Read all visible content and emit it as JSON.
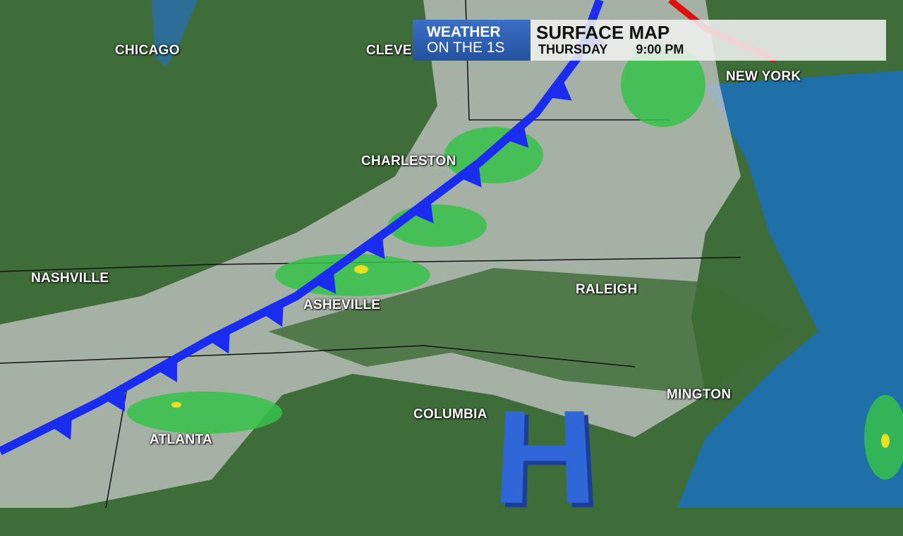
{
  "banner": {
    "brand_line1": "WEATHER",
    "brand_line2": "ON THE 1S",
    "title": "SURFACE MAP",
    "day": "THURSDAY",
    "time": "9:00 PM"
  },
  "cities": [
    {
      "id": "chicago",
      "label": "CHICAGO"
    },
    {
      "id": "cleveland",
      "label": "CLEVE"
    },
    {
      "id": "new-york",
      "label": "NEW YORK"
    },
    {
      "id": "charleston",
      "label": "CHARLESTON"
    },
    {
      "id": "nashville",
      "label": "NASHVILLE"
    },
    {
      "id": "asheville",
      "label": "ASHEVILLE"
    },
    {
      "id": "raleigh",
      "label": "RALEIGH"
    },
    {
      "id": "wilmington",
      "label": "MINGTON"
    },
    {
      "id": "columbia",
      "label": "COLUMBIA"
    },
    {
      "id": "atlanta",
      "label": "ATLANTA"
    }
  ],
  "pressure_center": {
    "type": "high",
    "label": "H"
  },
  "fronts": [
    {
      "type": "cold",
      "color": "#1a2cf0"
    },
    {
      "type": "warm",
      "color": "#e01010"
    }
  ],
  "colors": {
    "land": "#3f6d3a",
    "ocean": "#1f6fa8",
    "clouds": "#c8c8c8",
    "rain": "#36c24a",
    "heavy_rain": "#e8e020"
  }
}
